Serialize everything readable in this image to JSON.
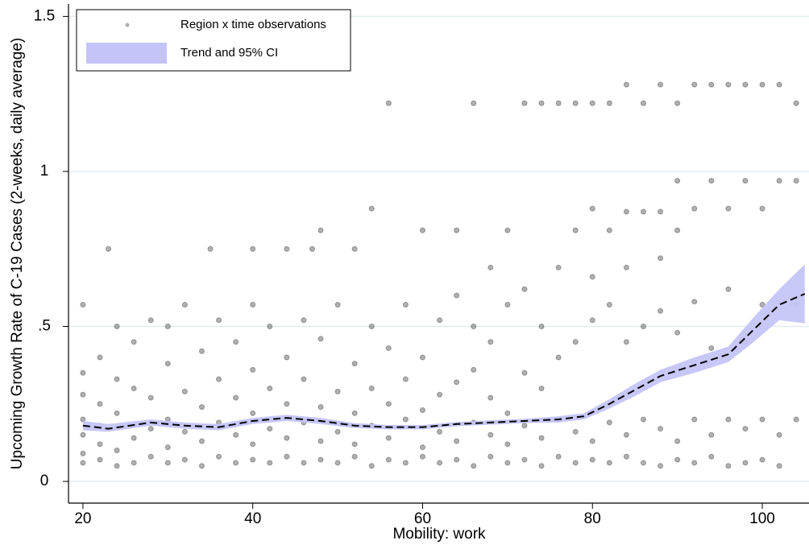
{
  "chart_data": {
    "type": "scatter",
    "x_label": "Mobility: work",
    "y_label": "Upcoming Growth Rate of C-19 Cases (2-weeks, daily average)",
    "xlim": [
      18.3,
      105.5
    ],
    "ylim": [
      -0.07,
      1.54
    ],
    "xticks": [
      20,
      40,
      60,
      80,
      100
    ],
    "yticks": [
      0,
      {
        "value": 0.5,
        "label": ".5"
      },
      1,
      1.5
    ],
    "grid": true,
    "legend": "top-left",
    "series": [
      {
        "name": "Region x time observations",
        "kind": "points",
        "color": "#505050",
        "x": [
          20,
          20,
          20,
          20,
          20,
          20,
          20,
          22,
          22,
          22,
          22,
          22,
          23,
          24,
          24,
          24,
          24,
          24,
          26,
          26,
          26,
          26,
          28,
          28,
          28,
          28,
          30,
          30,
          30,
          30,
          30,
          32,
          32,
          32,
          32,
          34,
          34,
          34,
          34,
          35,
          36,
          36,
          36,
          36,
          38,
          38,
          38,
          38,
          40,
          40,
          40,
          40,
          40,
          40,
          42,
          42,
          42,
          42,
          44,
          44,
          44,
          44,
          44,
          46,
          46,
          46,
          46,
          47,
          48,
          48,
          48,
          48,
          48,
          50,
          50,
          50,
          50,
          52,
          52,
          52,
          52,
          52,
          54,
          54,
          54,
          54,
          54,
          56,
          56,
          56,
          56,
          56,
          58,
          58,
          58,
          58,
          60,
          60,
          60,
          60,
          60,
          62,
          62,
          62,
          62,
          64,
          64,
          64,
          64,
          64,
          66,
          66,
          66,
          66,
          66,
          68,
          68,
          68,
          68,
          68,
          70,
          70,
          70,
          70,
          70,
          72,
          72,
          72,
          72,
          72,
          74,
          74,
          74,
          74,
          74,
          76,
          76,
          76,
          76,
          76,
          78,
          78,
          78,
          78,
          78,
          80,
          80,
          80,
          80,
          80,
          80,
          82,
          82,
          82,
          82,
          82,
          84,
          84,
          84,
          84,
          84,
          84,
          86,
          86,
          86,
          86,
          86,
          88,
          88,
          88,
          88,
          88,
          88,
          90,
          90,
          90,
          90,
          90,
          90,
          92,
          92,
          92,
          92,
          92,
          94,
          94,
          94,
          94,
          94,
          96,
          96,
          96,
          96,
          96,
          98,
          98,
          98,
          98,
          98,
          100,
          100,
          100,
          100,
          100,
          102,
          102,
          102,
          102,
          104,
          104,
          104,
          104
        ],
        "values": [
          0.06,
          0.09,
          0.15,
          0.2,
          0.28,
          0.35,
          0.57,
          0.07,
          0.12,
          0.18,
          0.25,
          0.4,
          0.75,
          0.05,
          0.1,
          0.22,
          0.33,
          0.5,
          0.06,
          0.14,
          0.3,
          0.45,
          0.08,
          0.17,
          0.27,
          0.52,
          0.06,
          0.11,
          0.2,
          0.38,
          0.5,
          0.07,
          0.16,
          0.29,
          0.57,
          0.05,
          0.13,
          0.24,
          0.42,
          0.75,
          0.08,
          0.19,
          0.33,
          0.52,
          0.06,
          0.15,
          0.27,
          0.45,
          0.07,
          0.12,
          0.22,
          0.36,
          0.57,
          0.75,
          0.06,
          0.17,
          0.3,
          0.5,
          0.08,
          0.14,
          0.25,
          0.4,
          0.75,
          0.06,
          0.19,
          0.33,
          0.52,
          0.75,
          0.07,
          0.13,
          0.24,
          0.46,
          0.81,
          0.06,
          0.16,
          0.29,
          0.57,
          0.08,
          0.12,
          0.22,
          0.38,
          0.75,
          0.05,
          0.18,
          0.3,
          0.5,
          0.88,
          0.07,
          0.14,
          0.25,
          0.43,
          1.22,
          0.06,
          0.2,
          0.33,
          0.57,
          0.08,
          0.11,
          0.23,
          0.4,
          0.81,
          0.06,
          0.16,
          0.28,
          0.52,
          0.07,
          0.13,
          0.32,
          0.6,
          0.81,
          0.05,
          0.19,
          0.36,
          0.5,
          1.22,
          0.08,
          0.15,
          0.27,
          0.45,
          0.69,
          0.06,
          0.12,
          0.22,
          0.57,
          0.81,
          0.07,
          0.18,
          0.35,
          0.62,
          1.22,
          0.05,
          0.14,
          0.3,
          0.5,
          1.22,
          0.08,
          0.2,
          0.4,
          0.69,
          1.22,
          0.06,
          0.16,
          0.45,
          0.81,
          1.22,
          0.07,
          0.13,
          0.52,
          0.66,
          0.88,
          1.22,
          0.06,
          0.19,
          0.57,
          0.81,
          1.22,
          0.08,
          0.15,
          0.45,
          0.69,
          0.87,
          1.28,
          0.06,
          0.2,
          0.5,
          0.87,
          1.22,
          0.05,
          0.17,
          0.55,
          0.72,
          0.87,
          1.28,
          0.07,
          0.13,
          0.48,
          0.81,
          0.97,
          1.22,
          0.06,
          0.2,
          0.58,
          0.88,
          1.28,
          0.08,
          0.15,
          0.43,
          0.97,
          1.28,
          0.05,
          0.2,
          0.62,
          0.88,
          1.28,
          0.06,
          0.17,
          0.45,
          0.97,
          1.28,
          0.07,
          0.2,
          0.57,
          0.88,
          1.28,
          0.05,
          0.15,
          0.97,
          1.28,
          0.2,
          0.57,
          0.97,
          1.22
        ]
      },
      {
        "name": "Trend and 95% CI",
        "kind": "trend",
        "color": "#c4c4f8",
        "line_color": "#000000",
        "x": [
          20,
          23,
          28,
          32,
          36,
          40,
          44,
          48,
          52,
          56,
          60,
          64,
          68,
          72,
          76,
          79,
          82,
          85,
          88,
          92,
          96,
          99,
          102,
          105
        ],
        "values": [
          0.18,
          0.17,
          0.19,
          0.18,
          0.175,
          0.195,
          0.205,
          0.195,
          0.18,
          0.175,
          0.175,
          0.185,
          0.19,
          0.195,
          0.2,
          0.21,
          0.25,
          0.295,
          0.34,
          0.375,
          0.41,
          0.49,
          0.57,
          0.605
        ],
        "lower": [
          0.165,
          0.16,
          0.18,
          0.17,
          0.165,
          0.185,
          0.195,
          0.185,
          0.172,
          0.168,
          0.168,
          0.178,
          0.183,
          0.188,
          0.19,
          0.2,
          0.235,
          0.275,
          0.32,
          0.35,
          0.385,
          0.45,
          0.52,
          0.51
        ],
        "upper": [
          0.195,
          0.185,
          0.2,
          0.19,
          0.185,
          0.205,
          0.215,
          0.205,
          0.188,
          0.182,
          0.182,
          0.192,
          0.197,
          0.202,
          0.21,
          0.22,
          0.265,
          0.315,
          0.36,
          0.4,
          0.435,
          0.53,
          0.62,
          0.7
        ]
      }
    ]
  }
}
